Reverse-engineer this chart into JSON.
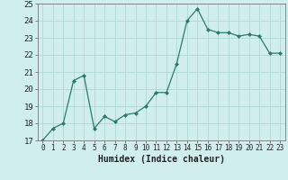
{
  "x": [
    0,
    1,
    2,
    3,
    4,
    5,
    6,
    7,
    8,
    9,
    10,
    11,
    12,
    13,
    14,
    15,
    16,
    17,
    18,
    19,
    20,
    21,
    22,
    23
  ],
  "y": [
    17.0,
    17.7,
    18.0,
    20.5,
    20.8,
    17.7,
    18.4,
    18.1,
    18.5,
    18.6,
    19.0,
    19.8,
    19.8,
    21.5,
    24.0,
    24.7,
    23.5,
    23.3,
    23.3,
    23.1,
    23.2,
    23.1,
    22.1,
    22.1
  ],
  "xlabel": "Humidex (Indice chaleur)",
  "ylim": [
    17,
    25
  ],
  "xlim_min": -0.5,
  "xlim_max": 23.5,
  "yticks": [
    17,
    18,
    19,
    20,
    21,
    22,
    23,
    24,
    25
  ],
  "xticks": [
    0,
    1,
    2,
    3,
    4,
    5,
    6,
    7,
    8,
    9,
    10,
    11,
    12,
    13,
    14,
    15,
    16,
    17,
    18,
    19,
    20,
    21,
    22,
    23
  ],
  "line_color": "#2d7a68",
  "marker_color": "#2d7a68",
  "bg_color": "#d0eeec",
  "grid_color": "#b0d8d4",
  "font_color": "#222222",
  "xlabel_fontsize": 7,
  "tick_fontsize": 5.5,
  "ytick_fontsize": 6.5
}
